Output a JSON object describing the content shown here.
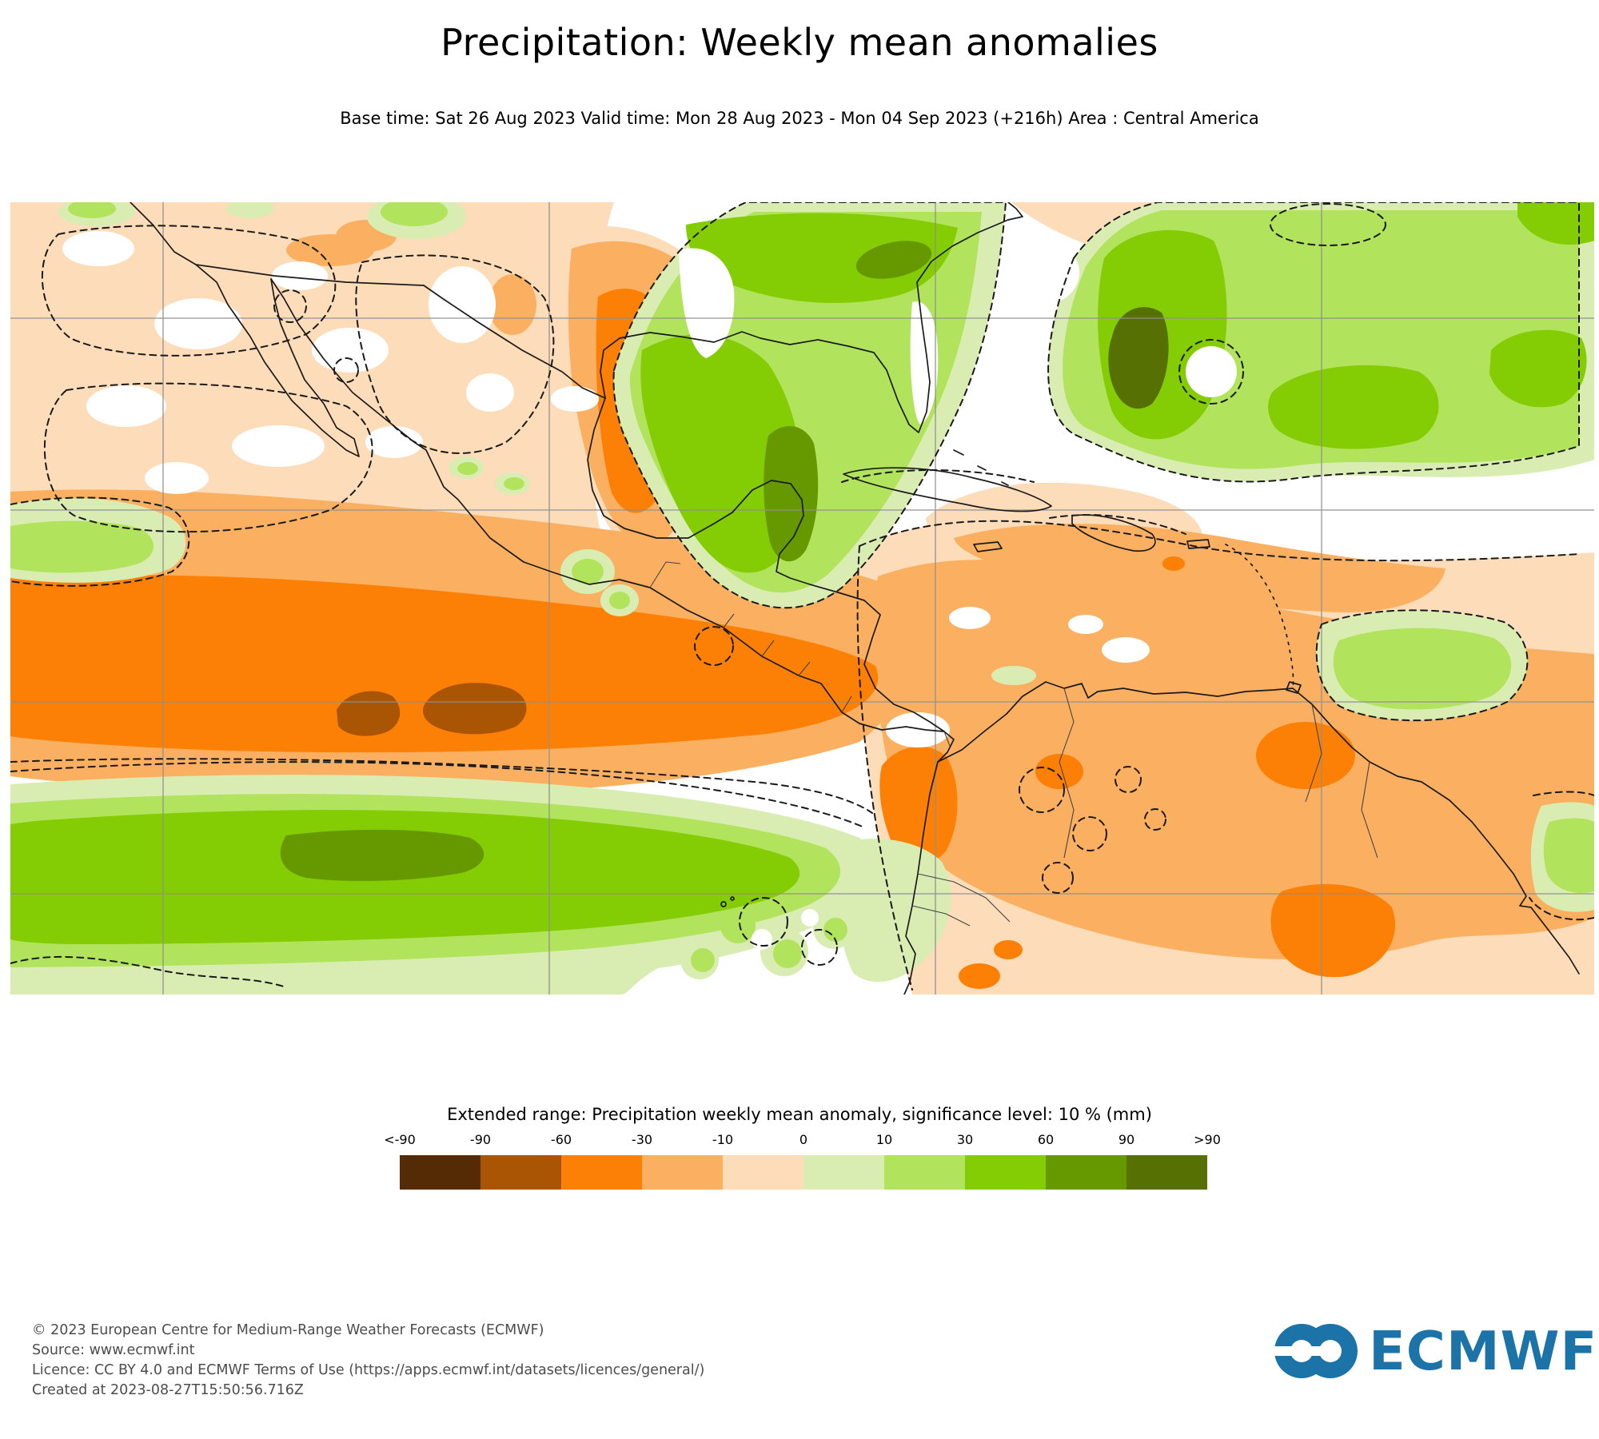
{
  "title": "Precipitation: Weekly mean anomalies",
  "subtitle": "Base time: Sat 26 Aug 2023 Valid time: Mon 28 Aug 2023 - Mon 04 Sep 2023 (+216h) Area : Central America",
  "legend": {
    "title": "Extended range: Precipitation weekly mean anomaly, significance level: 10 % (mm)",
    "tick_labels": [
      "<-90",
      "-90",
      "-60",
      "-30",
      "-10",
      "0",
      "10",
      "30",
      "60",
      "90",
      ">90"
    ],
    "colors": [
      "#552B05",
      "#AA5504",
      "#FC8005",
      "#FBB061",
      "#FDDCB9",
      "#D9EDB3",
      "#B2E35C",
      "#84CC04",
      "#669900",
      "#567004"
    ]
  },
  "footer": {
    "lines": [
      "© 2023 European Centre for Medium-Range Weather Forecasts (ECMWF)",
      "Source: www.ecmwf.int",
      "Licence: CC BY 4.0 and ECMWF Terms of Use (https://apps.ecmwf.int/datasets/licences/general/)",
      "Created at 2023-08-27T15:50:56.716Z"
    ]
  },
  "logo": {
    "text": "ECMWF",
    "color": "#1C73A8"
  }
}
